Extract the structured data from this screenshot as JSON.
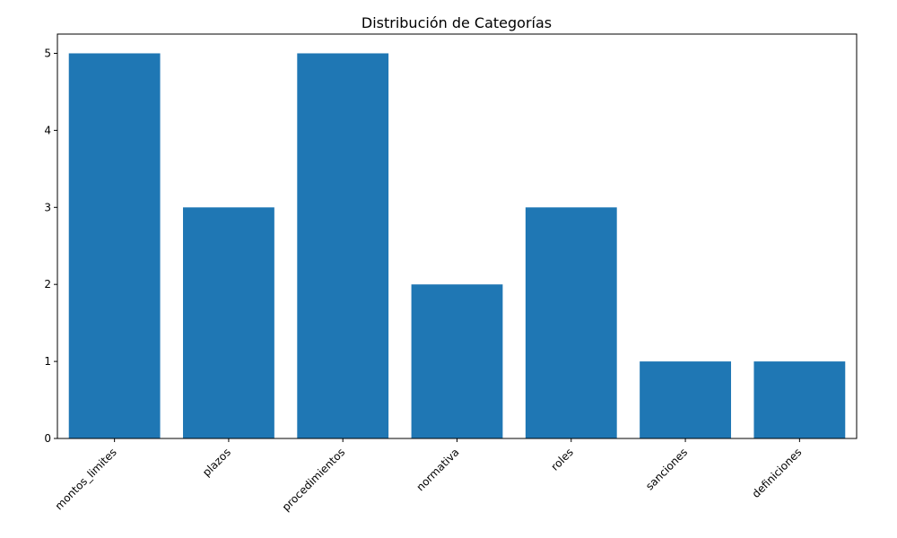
{
  "chart_data": {
    "type": "bar",
    "title": "Distribución de Categorías",
    "xlabel": "",
    "ylabel": "",
    "categories": [
      "montos_limites",
      "plazos",
      "procedimientos",
      "normativa",
      "roles",
      "sanciones",
      "definiciones"
    ],
    "values": [
      5,
      3,
      5,
      2,
      3,
      1,
      1
    ],
    "ylim": [
      0,
      5.25
    ],
    "yticks": [
      0,
      1,
      2,
      3,
      4,
      5
    ],
    "bar_color": "#1f77b4",
    "grid": false,
    "legend": "none"
  }
}
